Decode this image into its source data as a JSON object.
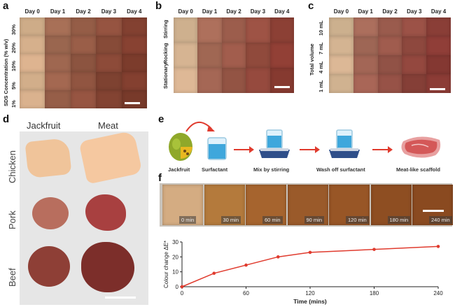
{
  "panels": {
    "a": {
      "letter": "a",
      "columns": [
        "Day 0",
        "Day 1",
        "Day 2",
        "Day 3",
        "Day 4"
      ],
      "rows": [
        "30%",
        "20%",
        "10%",
        "5%",
        "1%"
      ],
      "axis_label": "SDS Concentration (% w/v)"
    },
    "b": {
      "letter": "b",
      "columns": [
        "Day 0",
        "Day 1",
        "Day 2",
        "Day 3",
        "Day 4"
      ],
      "rows": [
        "Stirring",
        "Rocking",
        "Stationary"
      ]
    },
    "c": {
      "letter": "c",
      "columns": [
        "Day 0",
        "Day 1",
        "Day 2",
        "Day 3",
        "Day 4"
      ],
      "rows": [
        "10 mL",
        "7 mL",
        "4 mL",
        "1 mL"
      ],
      "axis_label": "Total volume"
    },
    "d": {
      "letter": "d",
      "columns": [
        "Jackfruit",
        "Meat"
      ],
      "rows": [
        "Chicken",
        "Pork",
        "Beef"
      ]
    },
    "e": {
      "letter": "e",
      "steps": [
        "Jackfruit",
        "Surfactant",
        "Mix by stirring",
        "Wash off surfactant",
        "Meat-like scaffold"
      ]
    },
    "f": {
      "letter": "f",
      "times": [
        "0 min",
        "30 min",
        "60 min",
        "90 min",
        "120 min",
        "180 min",
        "240 min"
      ]
    }
  },
  "colors": {
    "jackfruit_light": "#d8b48c",
    "brown_dark": "#7a3e2c",
    "accent_red": "#e03b2e"
  },
  "chart_data": {
    "type": "line",
    "x": [
      0,
      30,
      60,
      90,
      120,
      180,
      240
    ],
    "y": [
      0,
      9,
      14.5,
      20,
      23,
      25,
      27
    ],
    "xlabel": "Time (mins)",
    "ylabel": "Colour change ΔE*",
    "xticks": [
      0,
      60,
      120,
      180,
      240
    ],
    "yticks": [
      0,
      10,
      20,
      30
    ],
    "xlim": [
      0,
      240
    ],
    "ylim": [
      0,
      30
    ],
    "grid": false,
    "color": "#e03b2e"
  }
}
